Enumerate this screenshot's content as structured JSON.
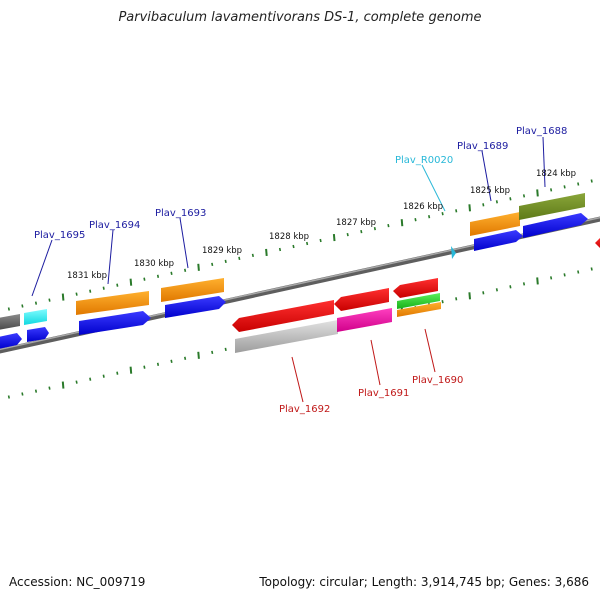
{
  "title": "Parvibaculum lavamentivorans DS-1, complete genome",
  "footer": {
    "accession": "Accession: NC_009719",
    "summary": "Topology: circular; Length: 3,914,745 bp; Genes: 3,686"
  },
  "colors": {
    "backbone": "#777777",
    "tick": "#2a7a2a",
    "label_blue": "#1c1ca0",
    "label_red": "#c01818",
    "label_cyan": "#28b8d8"
  },
  "ruler_labels": [
    "1831 kbp",
    "1830 kbp",
    "1829 kbp",
    "1828 kbp",
    "1827 kbp",
    "1826 kbp",
    "1825 kbp",
    "1824 kbp"
  ],
  "gene_labels": {
    "plav_1695": "Plav_1695",
    "plav_1694": "Plav_1694",
    "plav_1693": "Plav_1693",
    "plav_r0020": "Plav_R0020",
    "plav_1689": "Plav_1689",
    "plav_1688": "Plav_1688",
    "plav_1692": "Plav_1692",
    "plav_1691": "Plav_1691",
    "plav_1690": "Plav_1690"
  }
}
